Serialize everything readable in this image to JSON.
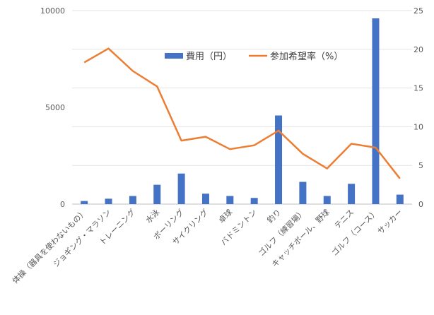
{
  "chart_data": {
    "type": "bar",
    "categories": [
      "体操（器具を使わないもの）",
      "ジョギング・マラソン",
      "トレーニング",
      "水泳",
      "ボーリング",
      "サイクリング",
      "卓球",
      "バドミントン",
      "釣り",
      "ゴルフ（練習場）",
      "キャッチボール、野球",
      "テニス",
      "ゴルフ（コース）",
      "サッカー"
    ],
    "series": [
      {
        "name": "費用（円）",
        "type": "bar",
        "axis": "left",
        "color": "#4472C4",
        "values": [
          160,
          280,
          420,
          1000,
          1580,
          540,
          420,
          320,
          4580,
          1150,
          420,
          1050,
          9600,
          490
        ]
      },
      {
        "name": "参加希望率（%）",
        "type": "line",
        "axis": "right",
        "color": "#ED7D31",
        "values": [
          18.3,
          20.1,
          17.2,
          15.2,
          8.2,
          8.7,
          7.1,
          7.6,
          9.5,
          6.5,
          4.6,
          7.8,
          7.3,
          3.3
        ]
      }
    ],
    "y_left": {
      "ticks": [
        "0",
        "5000",
        "10000"
      ],
      "ylim": [
        0,
        10000
      ]
    },
    "y_right": {
      "ticks": [
        "0",
        "5",
        "10",
        "15",
        "20",
        "25"
      ],
      "ylim": [
        0,
        25
      ]
    },
    "grid": true,
    "legend_position": "top-center"
  }
}
